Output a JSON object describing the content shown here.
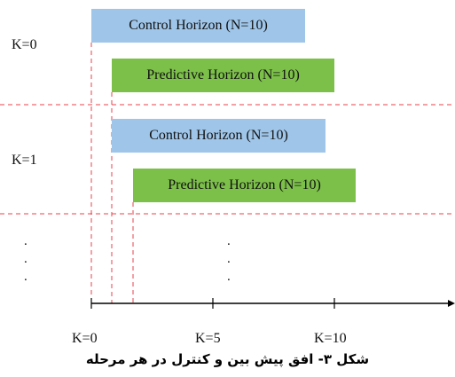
{
  "rows": [
    {
      "k_label": "K=0",
      "control_box": "Control Horizon (N=10)",
      "predictive_box": "Predictive Horizon (N=10)"
    },
    {
      "k_label": "K=1",
      "control_box": "Control Horizon (N=10)",
      "predictive_box": "Predictive Horizon (N=10)"
    }
  ],
  "ellipsis": ".\n.\n.",
  "x_axis": {
    "ticks": [
      "K=0",
      "K=5",
      "K=10"
    ]
  },
  "caption": "شکل ۳- افق پیش بین و کنترل در هر مرحله",
  "colors": {
    "control_box": "#9fc5e8",
    "predictive_box": "#7cc04a",
    "dashed_lines": "#e8424b",
    "axis": "#000000"
  }
}
